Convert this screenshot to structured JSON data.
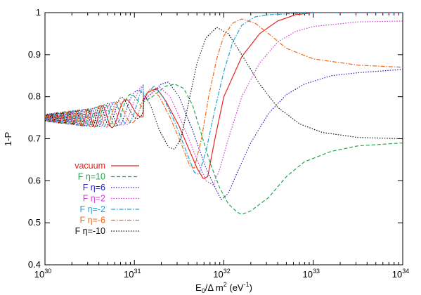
{
  "chart_data": {
    "type": "line",
    "xlabel": "E₀/Δ m² (eV⁻¹)",
    "xlabel_parts": {
      "main": "E",
      "sub": "0",
      "mid": "/Δ m",
      "sup": "2",
      "unit": " (eV",
      "unit_sup": "-1",
      "unit_end": ")"
    },
    "ylabel": "1-P",
    "xscale": "log",
    "xlim": [
      1e+30,
      1e+34
    ],
    "ylim": [
      0.4,
      1.0
    ],
    "x_ticks": [
      {
        "base": "10",
        "exp": "30"
      },
      {
        "base": "10",
        "exp": "31"
      },
      {
        "base": "10",
        "exp": "32"
      },
      {
        "base": "10",
        "exp": "33"
      },
      {
        "base": "10",
        "exp": "34"
      }
    ],
    "y_ticks": [
      "0.4",
      "0.5",
      "0.6",
      "0.7",
      "0.8",
      "0.9",
      "1"
    ],
    "legend_placement": "lower-left inside",
    "series": [
      {
        "name": "vacuum",
        "color": "#e8231f",
        "dash": "solid",
        "points": [
          [
            30.0,
            0.75
          ],
          [
            30.5,
            0.75
          ],
          [
            30.75,
            0.755
          ],
          [
            30.9,
            0.76
          ],
          [
            31.0,
            0.77
          ],
          [
            31.1,
            0.79
          ],
          [
            31.15,
            0.81
          ],
          [
            31.25,
            0.82
          ],
          [
            31.35,
            0.79
          ],
          [
            31.5,
            0.73
          ],
          [
            31.6,
            0.68
          ],
          [
            31.7,
            0.63
          ],
          [
            31.77,
            0.605
          ],
          [
            31.82,
            0.61
          ],
          [
            31.9,
            0.7
          ],
          [
            32.0,
            0.8
          ],
          [
            32.2,
            0.895
          ],
          [
            32.4,
            0.95
          ],
          [
            32.6,
            0.98
          ],
          [
            32.8,
            0.995
          ],
          [
            33.0,
            1.0
          ],
          [
            34.0,
            1.0
          ]
        ]
      },
      {
        "name": "F η=10",
        "color": "#1fa84a",
        "dash": "dashed",
        "points": [
          [
            30.0,
            0.75
          ],
          [
            30.5,
            0.75
          ],
          [
            30.8,
            0.76
          ],
          [
            31.0,
            0.775
          ],
          [
            31.2,
            0.8
          ],
          [
            31.35,
            0.825
          ],
          [
            31.45,
            0.83
          ],
          [
            31.55,
            0.82
          ],
          [
            31.65,
            0.78
          ],
          [
            31.75,
            0.71
          ],
          [
            31.85,
            0.64
          ],
          [
            31.95,
            0.585
          ],
          [
            32.05,
            0.545
          ],
          [
            32.15,
            0.525
          ],
          [
            32.2,
            0.52
          ],
          [
            32.3,
            0.528
          ],
          [
            32.5,
            0.56
          ],
          [
            32.7,
            0.61
          ],
          [
            32.9,
            0.645
          ],
          [
            33.2,
            0.67
          ],
          [
            33.5,
            0.683
          ],
          [
            34.0,
            0.69
          ]
        ]
      },
      {
        "name": "F η=6",
        "color": "#1f1fb8",
        "dash": "dotted",
        "points": [
          [
            30.0,
            0.75
          ],
          [
            30.5,
            0.75
          ],
          [
            30.8,
            0.76
          ],
          [
            31.0,
            0.775
          ],
          [
            31.15,
            0.8
          ],
          [
            31.3,
            0.83
          ],
          [
            31.38,
            0.835
          ],
          [
            31.5,
            0.8
          ],
          [
            31.65,
            0.72
          ],
          [
            31.8,
            0.63
          ],
          [
            31.9,
            0.585
          ],
          [
            31.97,
            0.555
          ],
          [
            32.05,
            0.57
          ],
          [
            32.15,
            0.62
          ],
          [
            32.3,
            0.69
          ],
          [
            32.5,
            0.76
          ],
          [
            32.7,
            0.805
          ],
          [
            32.9,
            0.83
          ],
          [
            33.2,
            0.85
          ],
          [
            33.5,
            0.857
          ],
          [
            34.0,
            0.865
          ]
        ]
      },
      {
        "name": "F η=2",
        "color": "#d23ad8",
        "dash": "dotted",
        "points": [
          [
            30.0,
            0.75
          ],
          [
            30.5,
            0.75
          ],
          [
            30.8,
            0.76
          ],
          [
            31.0,
            0.772
          ],
          [
            31.15,
            0.8
          ],
          [
            31.28,
            0.823
          ],
          [
            31.4,
            0.8
          ],
          [
            31.55,
            0.73
          ],
          [
            31.7,
            0.65
          ],
          [
            31.8,
            0.6
          ],
          [
            31.88,
            0.59
          ],
          [
            31.95,
            0.625
          ],
          [
            32.05,
            0.7
          ],
          [
            32.2,
            0.8
          ],
          [
            32.4,
            0.88
          ],
          [
            32.6,
            0.93
          ],
          [
            32.8,
            0.955
          ],
          [
            33.0,
            0.967
          ],
          [
            33.5,
            0.978
          ],
          [
            34.0,
            0.98
          ]
        ]
      },
      {
        "name": "F η=-2",
        "color": "#1fa5d8",
        "dash": "dashdot",
        "points": [
          [
            30.0,
            0.75
          ],
          [
            30.5,
            0.75
          ],
          [
            30.75,
            0.757
          ],
          [
            30.9,
            0.765
          ],
          [
            31.0,
            0.775
          ],
          [
            31.1,
            0.8
          ],
          [
            31.22,
            0.825
          ],
          [
            31.32,
            0.8
          ],
          [
            31.45,
            0.74
          ],
          [
            31.58,
            0.67
          ],
          [
            31.67,
            0.62
          ],
          [
            31.72,
            0.615
          ],
          [
            31.8,
            0.67
          ],
          [
            31.9,
            0.77
          ],
          [
            32.0,
            0.86
          ],
          [
            32.1,
            0.93
          ],
          [
            32.2,
            0.97
          ],
          [
            32.35,
            0.99
          ],
          [
            32.5,
            0.995
          ],
          [
            33.0,
            1.0
          ],
          [
            34.0,
            1.0
          ]
        ]
      },
      {
        "name": "F η=-6",
        "color": "#f06a1a",
        "dash": "dashdot",
        "points": [
          [
            30.0,
            0.75
          ],
          [
            30.5,
            0.75
          ],
          [
            30.75,
            0.755
          ],
          [
            30.9,
            0.765
          ],
          [
            31.0,
            0.775
          ],
          [
            31.1,
            0.795
          ],
          [
            31.18,
            0.82
          ],
          [
            31.28,
            0.8
          ],
          [
            31.4,
            0.75
          ],
          [
            31.52,
            0.69
          ],
          [
            31.62,
            0.635
          ],
          [
            31.67,
            0.63
          ],
          [
            31.75,
            0.7
          ],
          [
            31.83,
            0.8
          ],
          [
            31.92,
            0.89
          ],
          [
            32.0,
            0.945
          ],
          [
            32.1,
            0.975
          ],
          [
            32.2,
            0.985
          ],
          [
            32.35,
            0.975
          ],
          [
            32.5,
            0.95
          ],
          [
            32.7,
            0.915
          ],
          [
            33.0,
            0.89
          ],
          [
            33.5,
            0.875
          ],
          [
            34.0,
            0.87
          ]
        ]
      },
      {
        "name": "F η=-10",
        "color": "#111111",
        "dash": "dotted",
        "points": [
          [
            30.0,
            0.75
          ],
          [
            30.5,
            0.75
          ],
          [
            30.75,
            0.76
          ],
          [
            30.9,
            0.77
          ],
          [
            31.0,
            0.78
          ],
          [
            31.08,
            0.79
          ],
          [
            31.12,
            0.8
          ],
          [
            31.18,
            0.78
          ],
          [
            31.28,
            0.72
          ],
          [
            31.38,
            0.68
          ],
          [
            31.45,
            0.675
          ],
          [
            31.52,
            0.7
          ],
          [
            31.6,
            0.78
          ],
          [
            31.7,
            0.88
          ],
          [
            31.8,
            0.94
          ],
          [
            31.92,
            0.965
          ],
          [
            32.05,
            0.95
          ],
          [
            32.2,
            0.9
          ],
          [
            32.4,
            0.83
          ],
          [
            32.6,
            0.775
          ],
          [
            32.85,
            0.735
          ],
          [
            33.1,
            0.715
          ],
          [
            33.5,
            0.703
          ],
          [
            34.0,
            0.7
          ]
        ]
      }
    ]
  }
}
